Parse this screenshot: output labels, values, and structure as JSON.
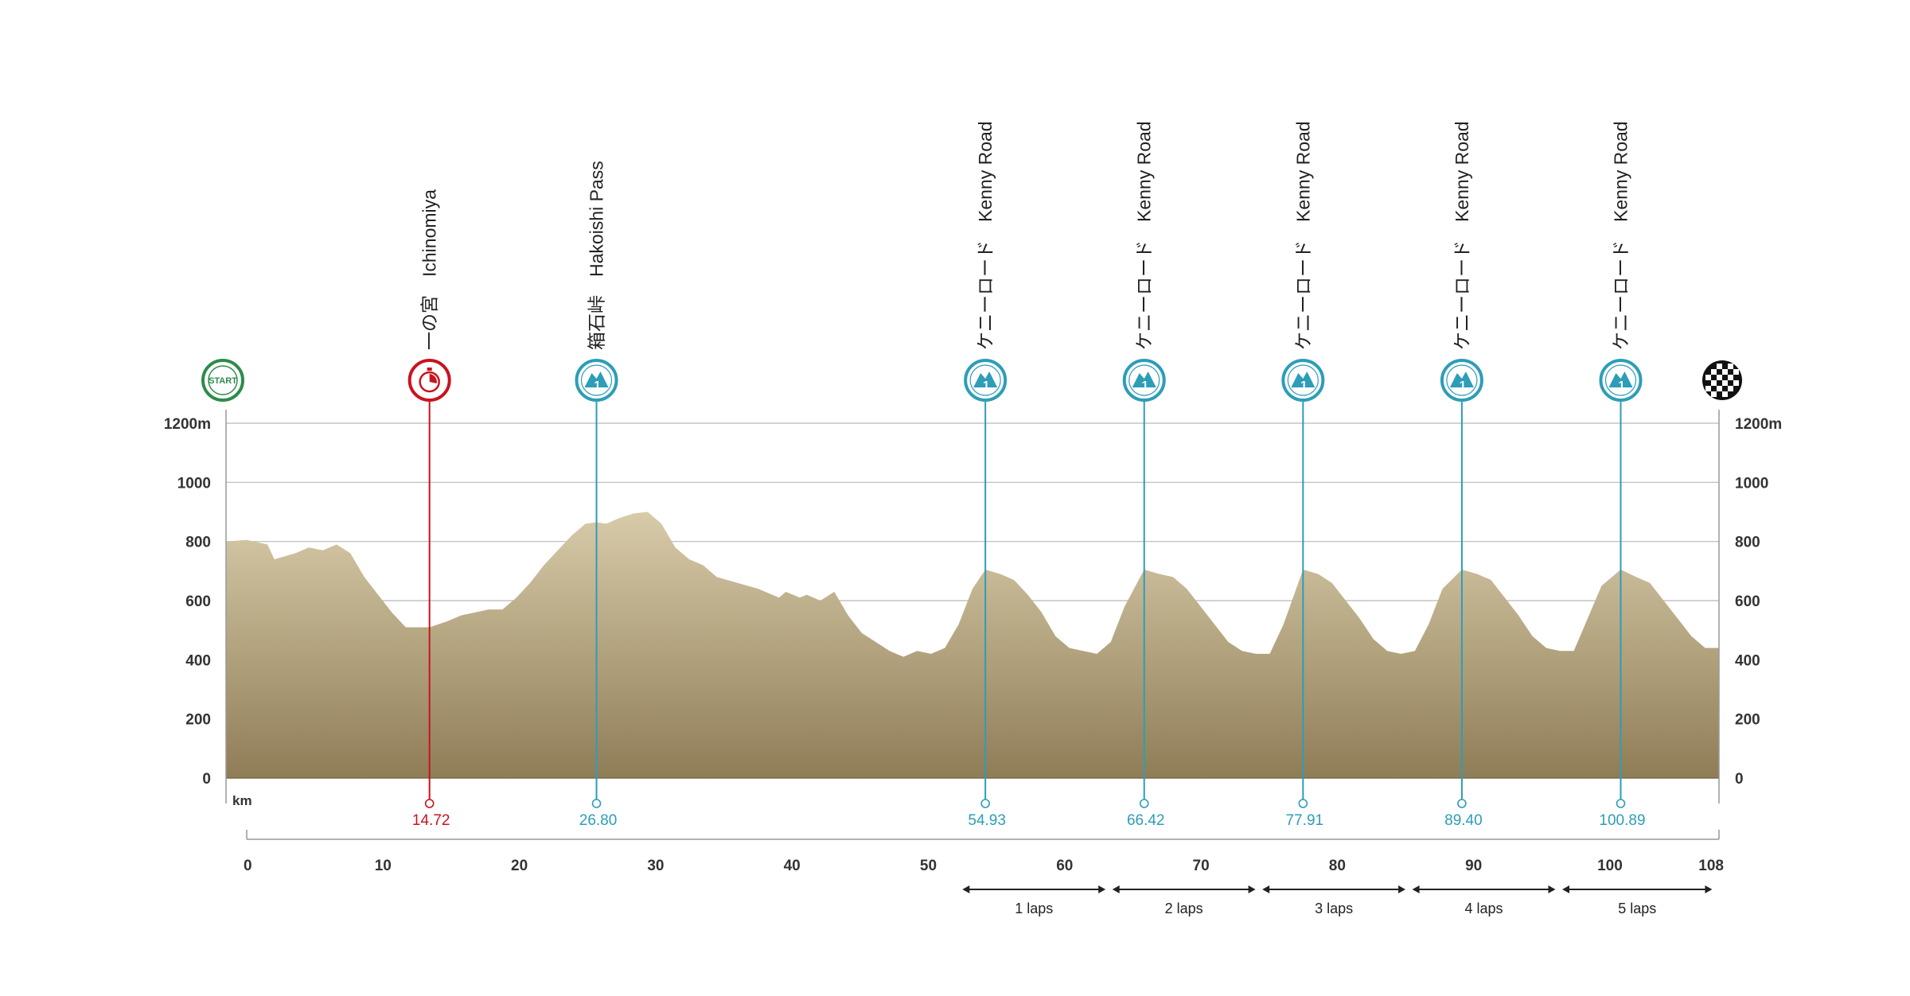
{
  "chart_data": {
    "type": "area",
    "x_unit": "km",
    "y_unit": "m",
    "xlim": [
      0,
      108
    ],
    "ylim": [
      0,
      1200
    ],
    "x_ticks": [
      0,
      10,
      20,
      30,
      40,
      50,
      60,
      70,
      80,
      90,
      100,
      108
    ],
    "y_ticks": [
      0,
      200,
      400,
      600,
      800,
      1000,
      1200
    ],
    "y_tick_labels": [
      "0",
      "200",
      "400",
      "600",
      "800",
      "1000",
      "1200m"
    ],
    "km_axis_label": "km",
    "grid": true,
    "profile": {
      "x": [
        0,
        1.5,
        3,
        3.5,
        5,
        6,
        7,
        8,
        9,
        10,
        11,
        12,
        13,
        14.72,
        16,
        17,
        18,
        19,
        20,
        21,
        22,
        23,
        24,
        25,
        26,
        26.8,
        27.5,
        28.5,
        29.5,
        30.5,
        31.5,
        32.5,
        33.5,
        34.5,
        35.5,
        37,
        38.5,
        40,
        40.5,
        41.5,
        42,
        43,
        44,
        45,
        46,
        47,
        48,
        49,
        50,
        51,
        52,
        53,
        54,
        54.93,
        56,
        57,
        58,
        59,
        60,
        61,
        62,
        63,
        64,
        65,
        66.42,
        67.5,
        68.5,
        69.5,
        70.5,
        71.5,
        72.5,
        73.5,
        74.5,
        75.5,
        76.5,
        77.91,
        79,
        80,
        81,
        82,
        83,
        84,
        85,
        86,
        87,
        88,
        89.4,
        90.5,
        91.5,
        92.5,
        93.5,
        94.5,
        95.5,
        96.5,
        97.5,
        98.5,
        99.5,
        100.89,
        102,
        103,
        104,
        105,
        106,
        107,
        108
      ],
      "y": [
        800,
        805,
        790,
        740,
        760,
        780,
        770,
        790,
        760,
        680,
        620,
        560,
        510,
        510,
        530,
        550,
        560,
        570,
        570,
        610,
        660,
        720,
        770,
        820,
        860,
        865,
        860,
        880,
        895,
        900,
        860,
        780,
        740,
        720,
        680,
        660,
        640,
        610,
        630,
        610,
        620,
        600,
        630,
        550,
        490,
        460,
        430,
        410,
        430,
        420,
        440,
        520,
        640,
        705,
        690,
        670,
        620,
        560,
        480,
        440,
        430,
        420,
        460,
        580,
        705,
        690,
        680,
        640,
        580,
        520,
        460,
        430,
        420,
        420,
        520,
        705,
        690,
        660,
        600,
        540,
        470,
        430,
        420,
        430,
        520,
        640,
        705,
        690,
        670,
        610,
        550,
        480,
        440,
        430,
        430,
        540,
        650,
        705,
        680,
        660,
        600,
        540,
        480,
        440,
        440
      ]
    },
    "markers": [
      {
        "km": 0,
        "type": "start",
        "text": "START"
      },
      {
        "km": 14.72,
        "type": "sprint",
        "km_label": "14.72",
        "label": "一の宮　Ichinomiya",
        "color": "#c8141e"
      },
      {
        "km": 26.8,
        "type": "kom",
        "km_label": "26.80",
        "label": "箱石峠　Hakoishi Pass",
        "color": "#2d9db8"
      },
      {
        "km": 54.93,
        "type": "kom",
        "km_label": "54.93",
        "label": "ケニーロード　Kenny Road",
        "color": "#2d9db8"
      },
      {
        "km": 66.42,
        "type": "kom",
        "km_label": "66.42",
        "label": "ケニーロード　Kenny Road",
        "color": "#2d9db8"
      },
      {
        "km": 77.91,
        "type": "kom",
        "km_label": "77.91",
        "label": "ケニーロード　Kenny Road",
        "color": "#2d9db8"
      },
      {
        "km": 89.4,
        "type": "kom",
        "km_label": "89.40",
        "label": "ケニーロード　Kenny Road",
        "color": "#2d9db8"
      },
      {
        "km": 100.89,
        "type": "kom",
        "km_label": "100.89",
        "label": "ケニーロード　Kenny Road",
        "color": "#2d9db8"
      },
      {
        "km": 108,
        "type": "finish"
      }
    ],
    "laps": [
      {
        "from": 52.5,
        "to": 63.0,
        "label": "1 laps"
      },
      {
        "from": 63.5,
        "to": 74.0,
        "label": "2 laps"
      },
      {
        "from": 74.5,
        "to": 85.0,
        "label": "3 laps"
      },
      {
        "from": 85.5,
        "to": 96.0,
        "label": "4 laps"
      },
      {
        "from": 96.5,
        "to": 107.5,
        "label": "5 laps"
      }
    ],
    "colors": {
      "sprint": "#c8141e",
      "kom": "#2d9db8",
      "start": "#2e8b4a",
      "finish": "#111111",
      "profile_top": "#d8cba9",
      "profile_bottom": "#8f7d57",
      "grid": "#b8b8b8"
    }
  }
}
